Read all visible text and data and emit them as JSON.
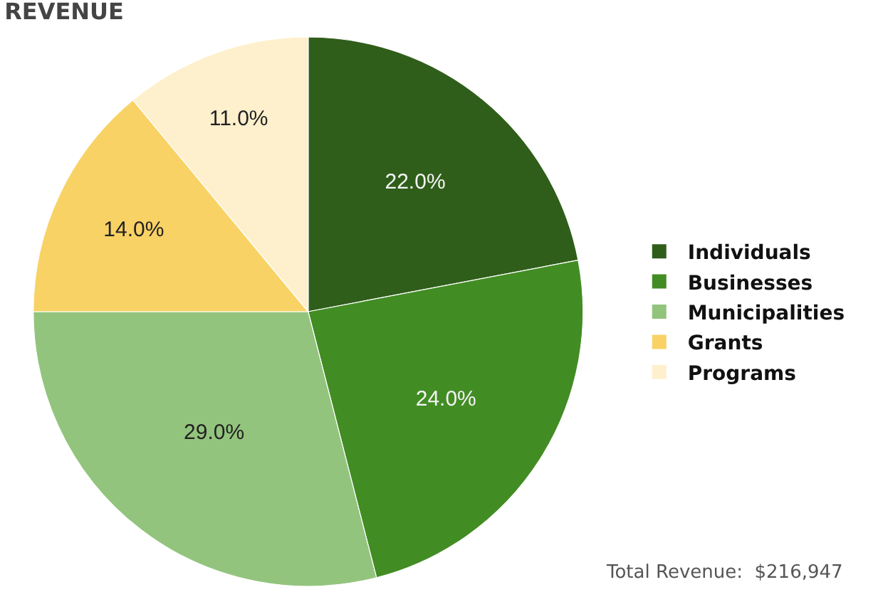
{
  "chart_data": {
    "type": "pie",
    "title": "REVENUE",
    "categories": [
      "Individuals",
      "Businesses",
      "Municipalities",
      "Grants",
      "Programs"
    ],
    "values": [
      22,
      24,
      29,
      14,
      11
    ],
    "value_labels": [
      "22.0%",
      "24.0%",
      "29.0%",
      "14.0%",
      "11.0%"
    ],
    "colors": [
      "#2f5e1a",
      "#428c24",
      "#93c47d",
      "#f9d265",
      "#fef0cc"
    ],
    "legend": "right",
    "annotations": [
      "Total Revenue:  $216,947"
    ]
  }
}
